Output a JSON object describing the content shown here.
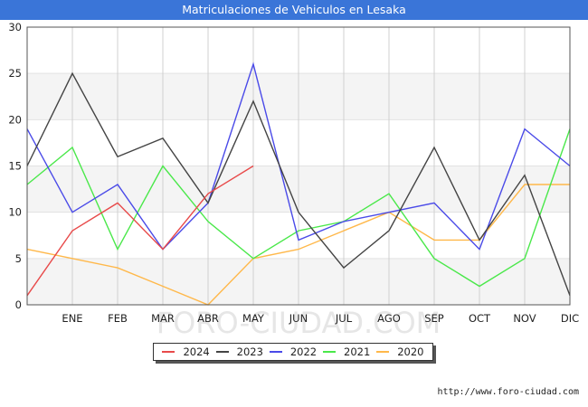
{
  "header": {
    "title": "Matriculaciones de Vehiculos en Lesaka"
  },
  "footer": {
    "source": "http://www.foro-ciudad.com"
  },
  "watermark": {
    "text": "FORO-CIUDAD.COM"
  },
  "chart_data": {
    "type": "line",
    "title": "Matriculaciones de Vehiculos en Lesaka",
    "categories": [
      "",
      "ENE",
      "FEB",
      "MAR",
      "ABR",
      "MAY",
      "JUN",
      "JUL",
      "AGO",
      "SEP",
      "OCT",
      "NOV",
      "DIC"
    ],
    "ylim": [
      0,
      30
    ],
    "yticks": [
      0,
      5,
      10,
      15,
      20,
      25,
      30
    ],
    "grid": "horizontal bands",
    "legend_position": "bottom",
    "series": [
      {
        "name": "2024",
        "color": "#e84a4a",
        "values": [
          1,
          8,
          11,
          6,
          12,
          15,
          null,
          null,
          null,
          null,
          null,
          null,
          null
        ]
      },
      {
        "name": "2023",
        "color": "#444444",
        "values": [
          15,
          25,
          16,
          18,
          11,
          22,
          10,
          4,
          8,
          17,
          7,
          14,
          1
        ]
      },
      {
        "name": "2022",
        "color": "#4a4ae8",
        "values": [
          19,
          10,
          13,
          6,
          11,
          26,
          7,
          9,
          10,
          11,
          6,
          19,
          15
        ]
      },
      {
        "name": "2021",
        "color": "#4ae84a",
        "values": [
          13,
          17,
          6,
          15,
          9,
          5,
          8,
          9,
          12,
          5,
          2,
          5,
          19
        ]
      },
      {
        "name": "2020",
        "color": "#ffb84a",
        "values": [
          6,
          5,
          4,
          2,
          0,
          5,
          6,
          8,
          10,
          7,
          7,
          13,
          13
        ]
      }
    ]
  }
}
